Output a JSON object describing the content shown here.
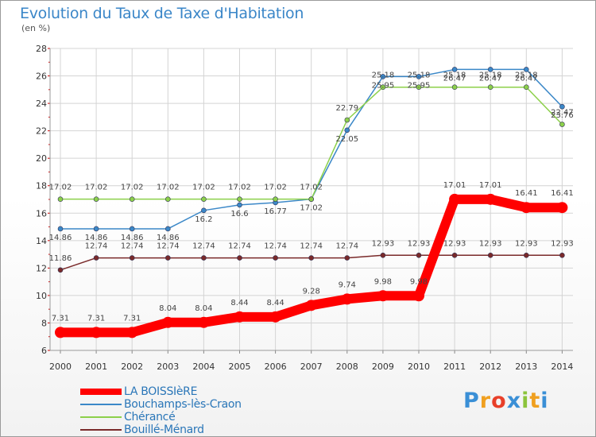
{
  "header": {
    "title": "Evolution du Taux de Taxe d'Habitation",
    "subtitle": "(en %)"
  },
  "logo": {
    "text": "Proxiti",
    "letter_colors": [
      "#3a8fd6",
      "#f0a020",
      "#e8402a",
      "#3a8fd6",
      "#8cc43c",
      "#f0a020",
      "#3a8fd6"
    ]
  },
  "chart_data": {
    "type": "line",
    "x": [
      2000,
      2001,
      2002,
      2003,
      2004,
      2005,
      2006,
      2007,
      2008,
      2009,
      2010,
      2011,
      2012,
      2013,
      2014
    ],
    "ylim": [
      6,
      28
    ],
    "yticks": [
      6,
      8,
      10,
      12,
      14,
      16,
      18,
      20,
      22,
      24,
      26,
      28
    ],
    "grid": true,
    "legend_position": "bottom-left",
    "series": [
      {
        "name": "LA BOISSIèRE",
        "color": "#ff0000",
        "values": [
          7.31,
          7.31,
          7.31,
          8.04,
          8.04,
          8.44,
          8.44,
          9.28,
          9.74,
          9.98,
          9.98,
          17.01,
          17.01,
          16.41,
          16.41
        ],
        "labels": [
          "7.31",
          "7.31",
          "7.31",
          "8.04",
          "8.04",
          "8.44",
          "8.44",
          "9.28",
          "9.74",
          "9.98",
          "9.98",
          "17.01",
          "17.01",
          "16.41",
          "16.41"
        ]
      },
      {
        "name": "Bouchamps-lès-Craon",
        "color": "#3b88c8",
        "values": [
          14.86,
          14.86,
          14.86,
          14.86,
          16.2,
          16.6,
          16.77,
          17.02,
          22.05,
          25.95,
          25.95,
          26.47,
          26.47,
          26.47,
          23.76
        ],
        "labels": [
          "14.86",
          "14.86",
          "14.86",
          "14.86",
          "16.2",
          "16.6",
          "16.77",
          "17.02",
          "22.05",
          "25.95",
          "25.95",
          "26.47",
          "26.47",
          "26.47",
          "23.76"
        ]
      },
      {
        "name": "Chérancé",
        "color": "#8cd04a",
        "values": [
          17.02,
          17.02,
          17.02,
          17.02,
          17.02,
          17.02,
          17.02,
          17.02,
          22.79,
          25.18,
          25.18,
          25.18,
          25.18,
          25.18,
          22.47
        ],
        "labels": [
          "17.02",
          "17.02",
          "17.02",
          "17.02",
          "17.02",
          "17.02",
          "17.02",
          "17.02",
          "22.79",
          "25.18",
          "25.18",
          "25.18",
          "25.18",
          "25.18",
          "22.47"
        ]
      },
      {
        "name": "Bouillé-Ménard",
        "color": "#7a2a2a",
        "values": [
          11.86,
          12.74,
          12.74,
          12.74,
          12.74,
          12.74,
          12.74,
          12.74,
          12.74,
          12.93,
          12.93,
          12.93,
          12.93,
          12.93,
          12.93
        ],
        "labels": [
          "11.86",
          "12.74",
          "12.74",
          "12.74",
          "12.74",
          "12.74",
          "12.74",
          "12.74",
          "12.74",
          "12.93",
          "12.93",
          "12.93",
          "12.93",
          "12.93",
          "12.93"
        ]
      }
    ]
  }
}
